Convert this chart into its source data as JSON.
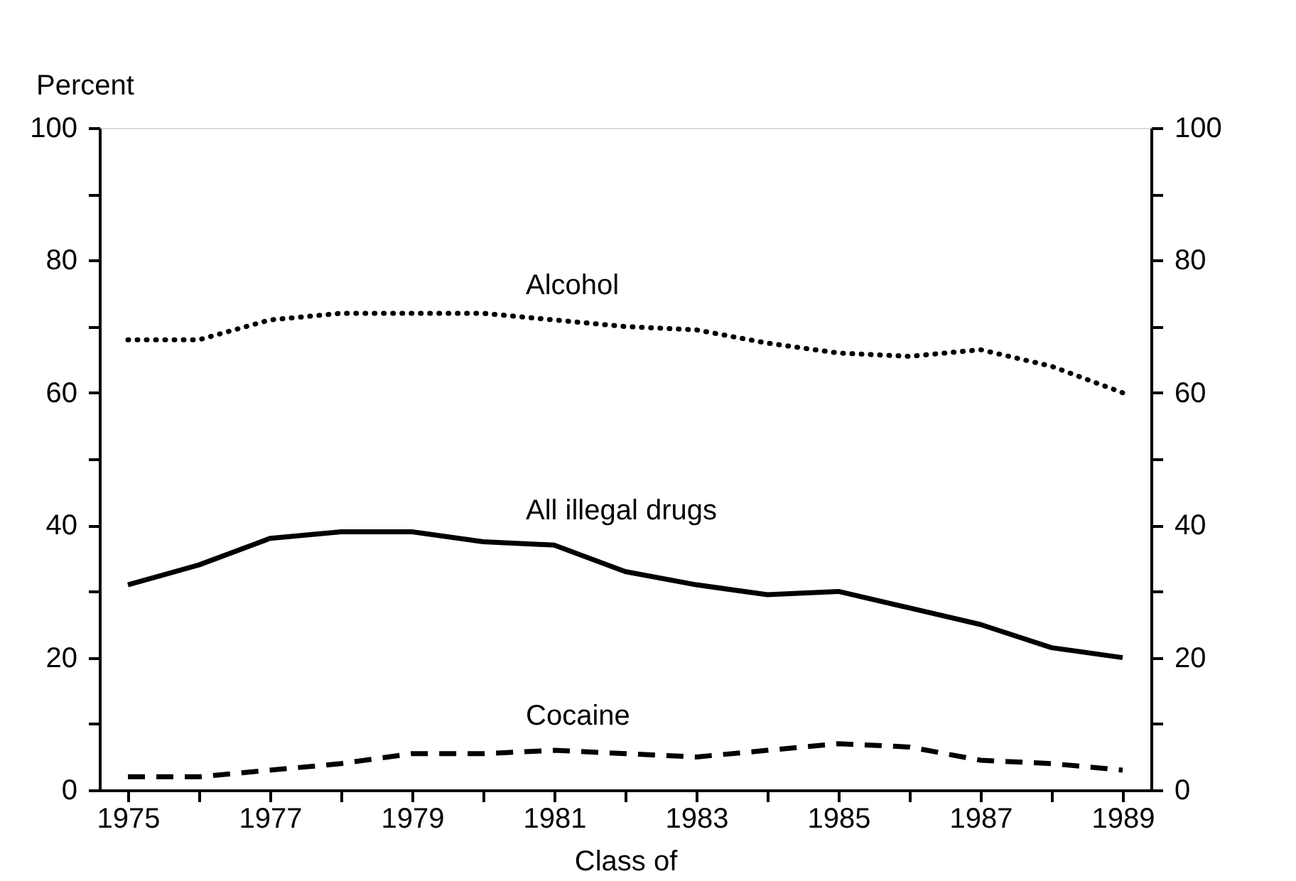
{
  "chart_data": {
    "type": "line",
    "xlabel": "Class of",
    "ylabel": "Percent",
    "x": [
      1975,
      1976,
      1977,
      1978,
      1979,
      1980,
      1981,
      1982,
      1983,
      1984,
      1985,
      1986,
      1987,
      1988,
      1989
    ],
    "series": [
      {
        "name": "Alcohol",
        "color": "#000000",
        "line_style": "dotted",
        "values": [
          68,
          68,
          71,
          72,
          72,
          72,
          71,
          70,
          69.5,
          67.5,
          66,
          65.5,
          66.5,
          64,
          60
        ]
      },
      {
        "name": "All illegal drugs",
        "color": "#000000",
        "line_style": "solid",
        "values": [
          31,
          34,
          38,
          39,
          39,
          37.5,
          37,
          33,
          31,
          29.5,
          30,
          27.5,
          25,
          21.5,
          20
        ]
      },
      {
        "name": "Cocaine",
        "color": "#000000",
        "line_style": "dashed",
        "values": [
          2,
          2,
          3,
          4,
          5.5,
          5.5,
          6,
          5.5,
          5,
          6,
          7,
          6.5,
          4.5,
          4,
          3
        ]
      }
    ],
    "xlim": [
      1974.6,
      1989.4
    ],
    "xticks": [
      1975,
      {
        "value": 1976,
        "label": null
      },
      1977,
      {
        "value": 1978,
        "label": null
      },
      1979,
      {
        "value": 1980,
        "label": null
      },
      1981,
      {
        "value": 1982,
        "label": null
      },
      1983,
      {
        "value": 1984,
        "label": null
      },
      1985,
      {
        "value": 1986,
        "label": null
      },
      1987,
      {
        "value": 1988,
        "label": null
      },
      1989
    ],
    "ylim": [
      0,
      100
    ],
    "yticks": [
      0,
      {
        "value": 10,
        "label": null
      },
      20,
      {
        "value": 30,
        "label": null
      },
      40,
      {
        "value": 50,
        "label": null
      },
      60,
      {
        "value": 70,
        "label": null
      },
      80,
      {
        "value": 90,
        "label": null
      },
      100
    ],
    "y2lim": [
      0,
      100
    ],
    "y2ticks": [
      0,
      {
        "value": 10,
        "label": null
      },
      20,
      {
        "value": 30,
        "label": null
      },
      40,
      {
        "value": 50,
        "label": null
      },
      60,
      {
        "value": 70,
        "label": null
      },
      80,
      {
        "value": 90,
        "label": null
      },
      100
    ],
    "legend": false,
    "grid": false,
    "marker": "none"
  }
}
